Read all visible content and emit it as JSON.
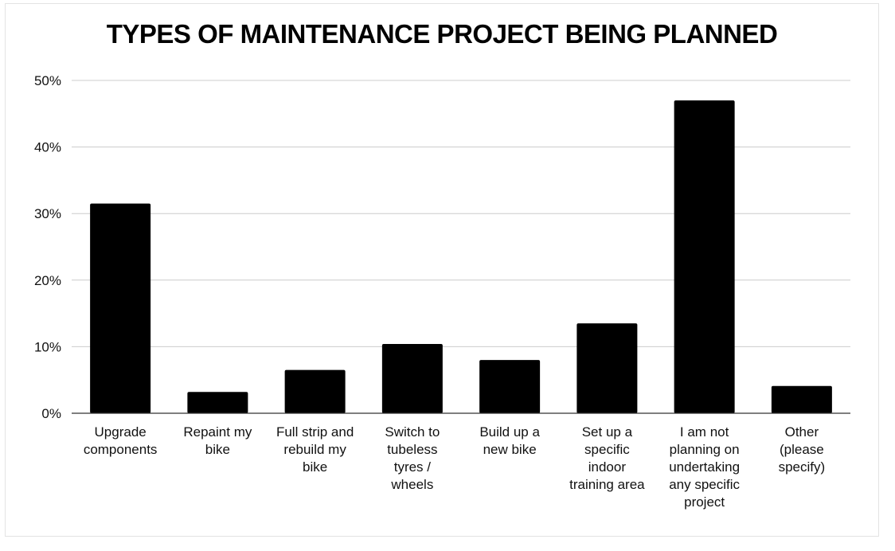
{
  "chart_data": {
    "type": "bar",
    "title": "TYPES OF MAINTENANCE PROJECT BEING PLANNED",
    "categories": [
      "Upgrade components",
      "Repaint my bike",
      "Full strip and rebuild my bike",
      "Switch to tubeless tyres / wheels",
      "Build up a new bike",
      "Set up a specific indoor training area",
      "I am not planning on undertaking any specific project",
      "Other (please specify)"
    ],
    "category_label_lines": [
      [
        "Upgrade",
        "components"
      ],
      [
        "Repaint my",
        "bike"
      ],
      [
        "Full strip and",
        "rebuild my",
        "bike"
      ],
      [
        "Switch to",
        "tubeless",
        "tyres /",
        "wheels"
      ],
      [
        "Build up a",
        "new bike"
      ],
      [
        "Set up a",
        "specific",
        "indoor",
        "training area"
      ],
      [
        "I am not",
        "planning on",
        "undertaking",
        "any specific",
        "project"
      ],
      [
        "Other",
        "(please",
        "specify)"
      ]
    ],
    "values": [
      31.5,
      3.2,
      6.5,
      10.4,
      8.0,
      13.5,
      47.0,
      4.1
    ],
    "unit": "%",
    "ylim": [
      0,
      50
    ],
    "yticks": [
      0,
      10,
      20,
      30,
      40,
      50
    ],
    "ytick_labels": [
      "0%",
      "10%",
      "20%",
      "30%",
      "40%",
      "50%"
    ],
    "xlabel": "",
    "ylabel": "",
    "grid": true,
    "bar_color": "#000000",
    "grid_color": "#cccccc"
  }
}
